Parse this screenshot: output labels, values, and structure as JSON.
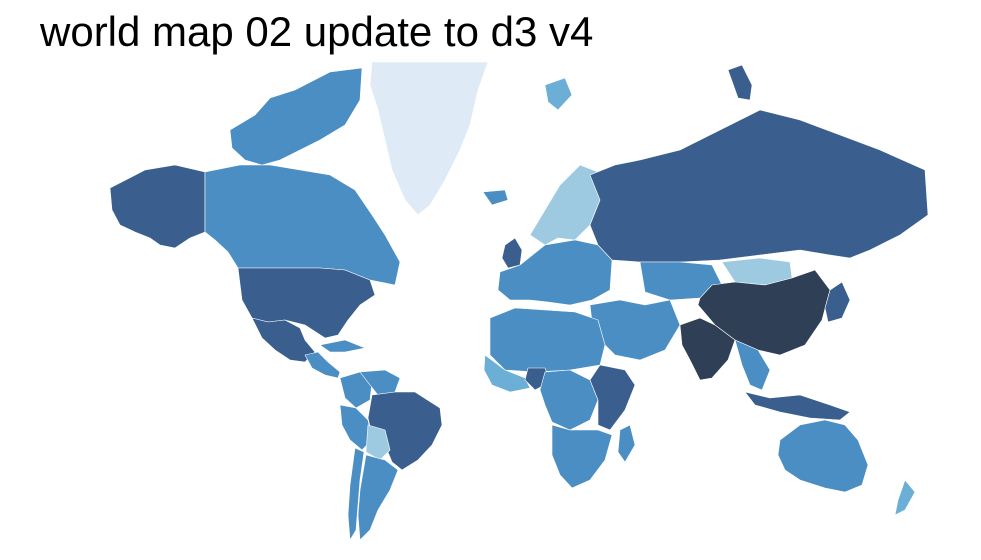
{
  "page": {
    "title": "world map 02 update to d3 v4"
  },
  "colors": {
    "very_light": "#deebf7",
    "light": "#9ecae1",
    "light_mid": "#6baed6",
    "mid": "#4a8ec4",
    "dark": "#3a5f8e",
    "darkest": "#2f3f56",
    "stroke": "#ffffff"
  },
  "regions": [
    {
      "id": "greenland",
      "shade": "very_light"
    },
    {
      "id": "alaska",
      "shade": "dark"
    },
    {
      "id": "canada",
      "shade": "mid"
    },
    {
      "id": "arctic-islands",
      "shade": "mid"
    },
    {
      "id": "usa",
      "shade": "dark"
    },
    {
      "id": "mexico",
      "shade": "dark"
    },
    {
      "id": "central-america",
      "shade": "mid"
    },
    {
      "id": "cuba",
      "shade": "mid"
    },
    {
      "id": "colombia",
      "shade": "mid"
    },
    {
      "id": "venezuela",
      "shade": "mid"
    },
    {
      "id": "peru",
      "shade": "mid"
    },
    {
      "id": "brazil",
      "shade": "dark"
    },
    {
      "id": "bolivia",
      "shade": "light"
    },
    {
      "id": "argentina",
      "shade": "mid"
    },
    {
      "id": "chile",
      "shade": "mid"
    },
    {
      "id": "iceland",
      "shade": "mid"
    },
    {
      "id": "scandinavia",
      "shade": "light"
    },
    {
      "id": "uk",
      "shade": "dark"
    },
    {
      "id": "europe",
      "shade": "mid"
    },
    {
      "id": "russia",
      "shade": "dark"
    },
    {
      "id": "north-africa",
      "shade": "mid"
    },
    {
      "id": "west-africa",
      "shade": "light_mid"
    },
    {
      "id": "nigeria",
      "shade": "dark"
    },
    {
      "id": "central-africa",
      "shade": "mid"
    },
    {
      "id": "east-africa",
      "shade": "dark"
    },
    {
      "id": "southern-africa",
      "shade": "mid"
    },
    {
      "id": "madagascar",
      "shade": "mid"
    },
    {
      "id": "middle-east",
      "shade": "mid"
    },
    {
      "id": "kazakhstan",
      "shade": "mid"
    },
    {
      "id": "mongolia",
      "shade": "light"
    },
    {
      "id": "china",
      "shade": "darkest"
    },
    {
      "id": "india",
      "shade": "darkest"
    },
    {
      "id": "southeast-asia",
      "shade": "mid"
    },
    {
      "id": "japan",
      "shade": "dark"
    },
    {
      "id": "indonesia",
      "shade": "dark"
    },
    {
      "id": "australia",
      "shade": "mid"
    },
    {
      "id": "new-zealand",
      "shade": "light_mid"
    },
    {
      "id": "svalbard",
      "shade": "light_mid"
    },
    {
      "id": "novaya-zemlya",
      "shade": "dark"
    }
  ]
}
